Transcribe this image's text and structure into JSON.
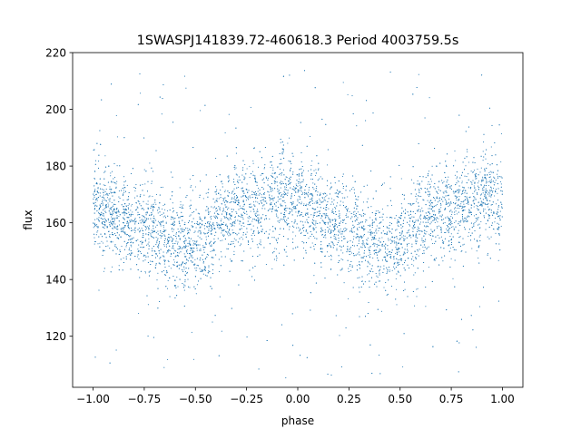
{
  "chart_data": {
    "type": "scatter",
    "title": "1SWASPJ141839.72-460618.3 Period 4003759.5s",
    "xlabel": "phase",
    "ylabel": "flux",
    "xlim": [
      -1.1,
      1.1
    ],
    "ylim": [
      102,
      220
    ],
    "xticks": [
      -1.0,
      -0.75,
      -0.5,
      -0.25,
      0.0,
      0.25,
      0.5,
      0.75,
      1.0
    ],
    "xtick_labels": [
      "−1.00",
      "−0.75",
      "−0.50",
      "−0.25",
      "0.00",
      "0.25",
      "0.50",
      "0.75",
      "1.00"
    ],
    "yticks": [
      120,
      140,
      160,
      180,
      200,
      220
    ],
    "ytick_labels": [
      "120",
      "140",
      "160",
      "180",
      "200",
      "220"
    ],
    "grid": false,
    "legend": "none",
    "marker_color": "#1f77b4",
    "phase_range": [
      -1.0,
      1.0
    ],
    "mean_flux_profile": {
      "phase": [
        -1.0,
        -0.95,
        -0.9,
        -0.85,
        -0.8,
        -0.75,
        -0.7,
        -0.65,
        -0.6,
        -0.55,
        -0.5,
        -0.45,
        -0.4,
        -0.35,
        -0.3,
        -0.25,
        -0.2,
        -0.15,
        -0.1,
        -0.05,
        0.0
      ],
      "flux": [
        166,
        165,
        163,
        161,
        160,
        158,
        157,
        155,
        153,
        152,
        152,
        154,
        160,
        163,
        164,
        164,
        165,
        167,
        169,
        170,
        166
      ]
    },
    "scatter_std": 8.0,
    "outlier_range": [
      105,
      215
    ]
  }
}
